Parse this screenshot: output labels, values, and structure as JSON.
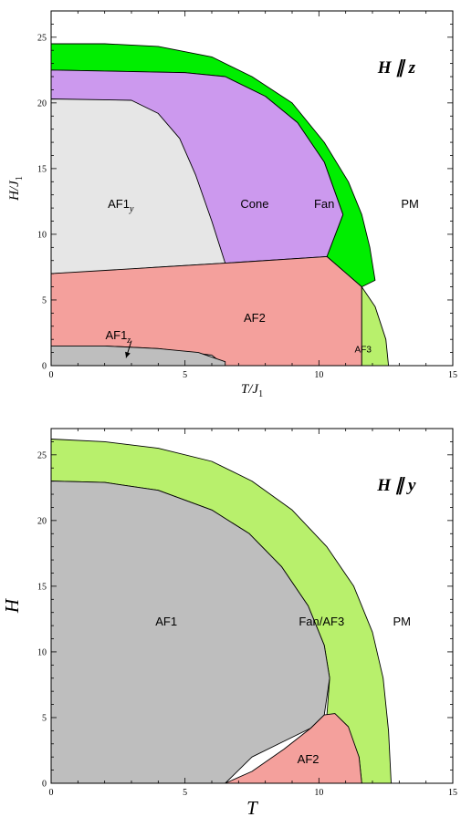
{
  "chart_data": [
    {
      "type": "area",
      "panel": "top",
      "xlabel": "T/J",
      "xlabel_sub": "1",
      "ylabel": "H/J",
      "ylabel_sub": "1",
      "xlim": [
        0,
        15
      ],
      "ylim": [
        0,
        27
      ],
      "x_ticks": [
        0,
        5,
        10,
        15
      ],
      "y_ticks": [
        0,
        5,
        10,
        15,
        20,
        25
      ],
      "field_label": "H ∥ z",
      "regions": [
        {
          "name": "Fan",
          "label": "Fan",
          "color": "#00ee00",
          "boundary": [
            [
              0,
              24.5
            ],
            [
              2,
              24.5
            ],
            [
              4,
              24.3
            ],
            [
              6,
              23.5
            ],
            [
              7.5,
              22
            ],
            [
              9,
              20
            ],
            [
              10.2,
              17
            ],
            [
              11.1,
              14
            ],
            [
              11.6,
              11.5
            ],
            [
              11.9,
              9
            ],
            [
              12.1,
              6.5
            ],
            [
              11.6,
              6
            ],
            [
              10.3,
              8.3
            ],
            [
              10.9,
              11.5
            ],
            [
              10.2,
              15.5
            ],
            [
              9.2,
              18.5
            ],
            [
              8,
              20.5
            ],
            [
              6.5,
              22
            ],
            [
              5,
              22.3
            ],
            [
              0,
              22.5
            ]
          ]
        },
        {
          "name": "Cone",
          "label": "Cone",
          "color": "#cc99ee",
          "boundary": [
            [
              0,
              22.5
            ],
            [
              5,
              22.3
            ],
            [
              6.5,
              22
            ],
            [
              8,
              20.5
            ],
            [
              9.2,
              18.5
            ],
            [
              10.2,
              15.5
            ],
            [
              10.9,
              11.5
            ],
            [
              10.3,
              8.3
            ],
            [
              6.5,
              7.8
            ],
            [
              5.4,
              9
            ],
            [
              5.2,
              11.5
            ],
            [
              4.8,
              15
            ],
            [
              4,
              17.5
            ],
            [
              3,
              19.2
            ],
            [
              0,
              20.3
            ]
          ]
        },
        {
          "name": "AF1y",
          "label": "AF1",
          "label_sub": "y",
          "color": "#e6e6e6",
          "boundary": [
            [
              0,
              20.3
            ],
            [
              3,
              20.2
            ],
            [
              4,
              19.2
            ],
            [
              4.8,
              17.3
            ],
            [
              5.4,
              14.5
            ],
            [
              6,
              11
            ],
            [
              6.5,
              7.8
            ],
            [
              4,
              7.5
            ],
            [
              2,
              7.2
            ],
            [
              0,
              7
            ]
          ]
        },
        {
          "name": "AF2",
          "label": "AF2",
          "color": "#f4a09c",
          "boundary": [
            [
              0,
              7
            ],
            [
              6.5,
              7.8
            ],
            [
              10.3,
              8.3
            ],
            [
              11.6,
              6
            ],
            [
              11.6,
              0
            ],
            [
              6.5,
              0
            ],
            [
              6,
              0.8
            ],
            [
              4,
              1.3
            ],
            [
              2,
              1.5
            ],
            [
              0,
              1.5
            ]
          ]
        },
        {
          "name": "AF1z",
          "label": "AF1",
          "label_sub": "z",
          "color": "#bebebe",
          "boundary": [
            [
              0,
              1.5
            ],
            [
              2,
              1.5
            ],
            [
              4,
              1.3
            ],
            [
              5.5,
              1.0
            ],
            [
              6.5,
              0.3
            ],
            [
              6.5,
              0
            ],
            [
              0,
              0
            ]
          ]
        },
        {
          "name": "AF3",
          "label": "AF3",
          "color": "#b8f06c",
          "boundary": [
            [
              11.6,
              6
            ],
            [
              12.1,
              4.5
            ],
            [
              12.5,
              2
            ],
            [
              12.6,
              0
            ],
            [
              11.6,
              0
            ]
          ]
        },
        {
          "name": "PM",
          "label": "PM",
          "color": "#ffffff",
          "boundary": []
        }
      ],
      "label_positions": {
        "AF1y": [
          2.6,
          12.3
        ],
        "Cone": [
          7.6,
          12.3
        ],
        "Fan": [
          10.2,
          12.3
        ],
        "PM": [
          13.4,
          12.3
        ],
        "AF2": [
          7.6,
          3.6
        ],
        "AF1z": [
          2.5,
          2.3
        ],
        "AF3": [
          11.65,
          1.3
        ]
      },
      "arrow": {
        "from": [
          3.0,
          1.9
        ],
        "to": [
          2.8,
          0.6
        ]
      }
    },
    {
      "type": "area",
      "panel": "bottom",
      "xlabel": "T",
      "ylabel": "H",
      "xlim": [
        0,
        15
      ],
      "ylim": [
        0,
        27
      ],
      "x_ticks": [
        0,
        5,
        10,
        15
      ],
      "y_ticks": [
        0,
        5,
        10,
        15,
        20,
        25
      ],
      "field_label": "H ∥ y",
      "regions": [
        {
          "name": "Fan/AF3",
          "label": "Fan/AF3",
          "color": "#b8f06c",
          "boundary": [
            [
              0,
              26.2
            ],
            [
              2,
              26
            ],
            [
              4,
              25.5
            ],
            [
              6,
              24.5
            ],
            [
              7.5,
              23
            ],
            [
              9,
              20.8
            ],
            [
              10.3,
              18
            ],
            [
              11.3,
              15
            ],
            [
              12,
              11.5
            ],
            [
              12.4,
              8
            ],
            [
              12.6,
              4
            ],
            [
              12.7,
              0
            ],
            [
              11.6,
              0
            ],
            [
              11.5,
              2
            ],
            [
              11,
              3.8
            ],
            [
              10.3,
              5.2
            ],
            [
              10.4,
              8
            ],
            [
              10.2,
              10.5
            ],
            [
              9.6,
              13.5
            ],
            [
              8.6,
              16.5
            ],
            [
              7.4,
              19
            ],
            [
              6,
              20.8
            ],
            [
              4,
              22.3
            ],
            [
              2,
              22.9
            ],
            [
              0,
              23
            ]
          ]
        },
        {
          "name": "AF1",
          "label": "AF1",
          "color": "#bebebe",
          "boundary": [
            [
              0,
              23
            ],
            [
              2,
              22.9
            ],
            [
              4,
              22.3
            ],
            [
              6,
              20.8
            ],
            [
              7.4,
              19
            ],
            [
              8.6,
              16.5
            ],
            [
              9.6,
              13.5
            ],
            [
              10.2,
              10.5
            ],
            [
              10.4,
              8
            ],
            [
              10.2,
              5.2
            ],
            [
              9.7,
              4.2
            ],
            [
              8.7,
              3.2
            ],
            [
              7.5,
              2
            ],
            [
              6.5,
              0
            ],
            [
              0,
              0
            ]
          ]
        },
        {
          "name": "AF2",
          "label": "AF2",
          "color": "#f4a09c",
          "boundary": [
            [
              6.5,
              0
            ],
            [
              7.5,
              0.9
            ],
            [
              8.7,
              2.6
            ],
            [
              9.7,
              4.2
            ],
            [
              10.2,
              5.2
            ],
            [
              10.6,
              5.3
            ],
            [
              11.1,
              4.3
            ],
            [
              11.5,
              2
            ],
            [
              11.6,
              0
            ]
          ]
        },
        {
          "name": "PM",
          "label": "PM",
          "color": "#ffffff",
          "boundary": []
        }
      ],
      "label_positions": {
        "AF1": [
          4.3,
          12.3
        ],
        "Fan/AF3": [
          10.1,
          12.3
        ],
        "PM": [
          13.1,
          12.3
        ],
        "AF2": [
          9.6,
          1.8
        ]
      }
    }
  ]
}
